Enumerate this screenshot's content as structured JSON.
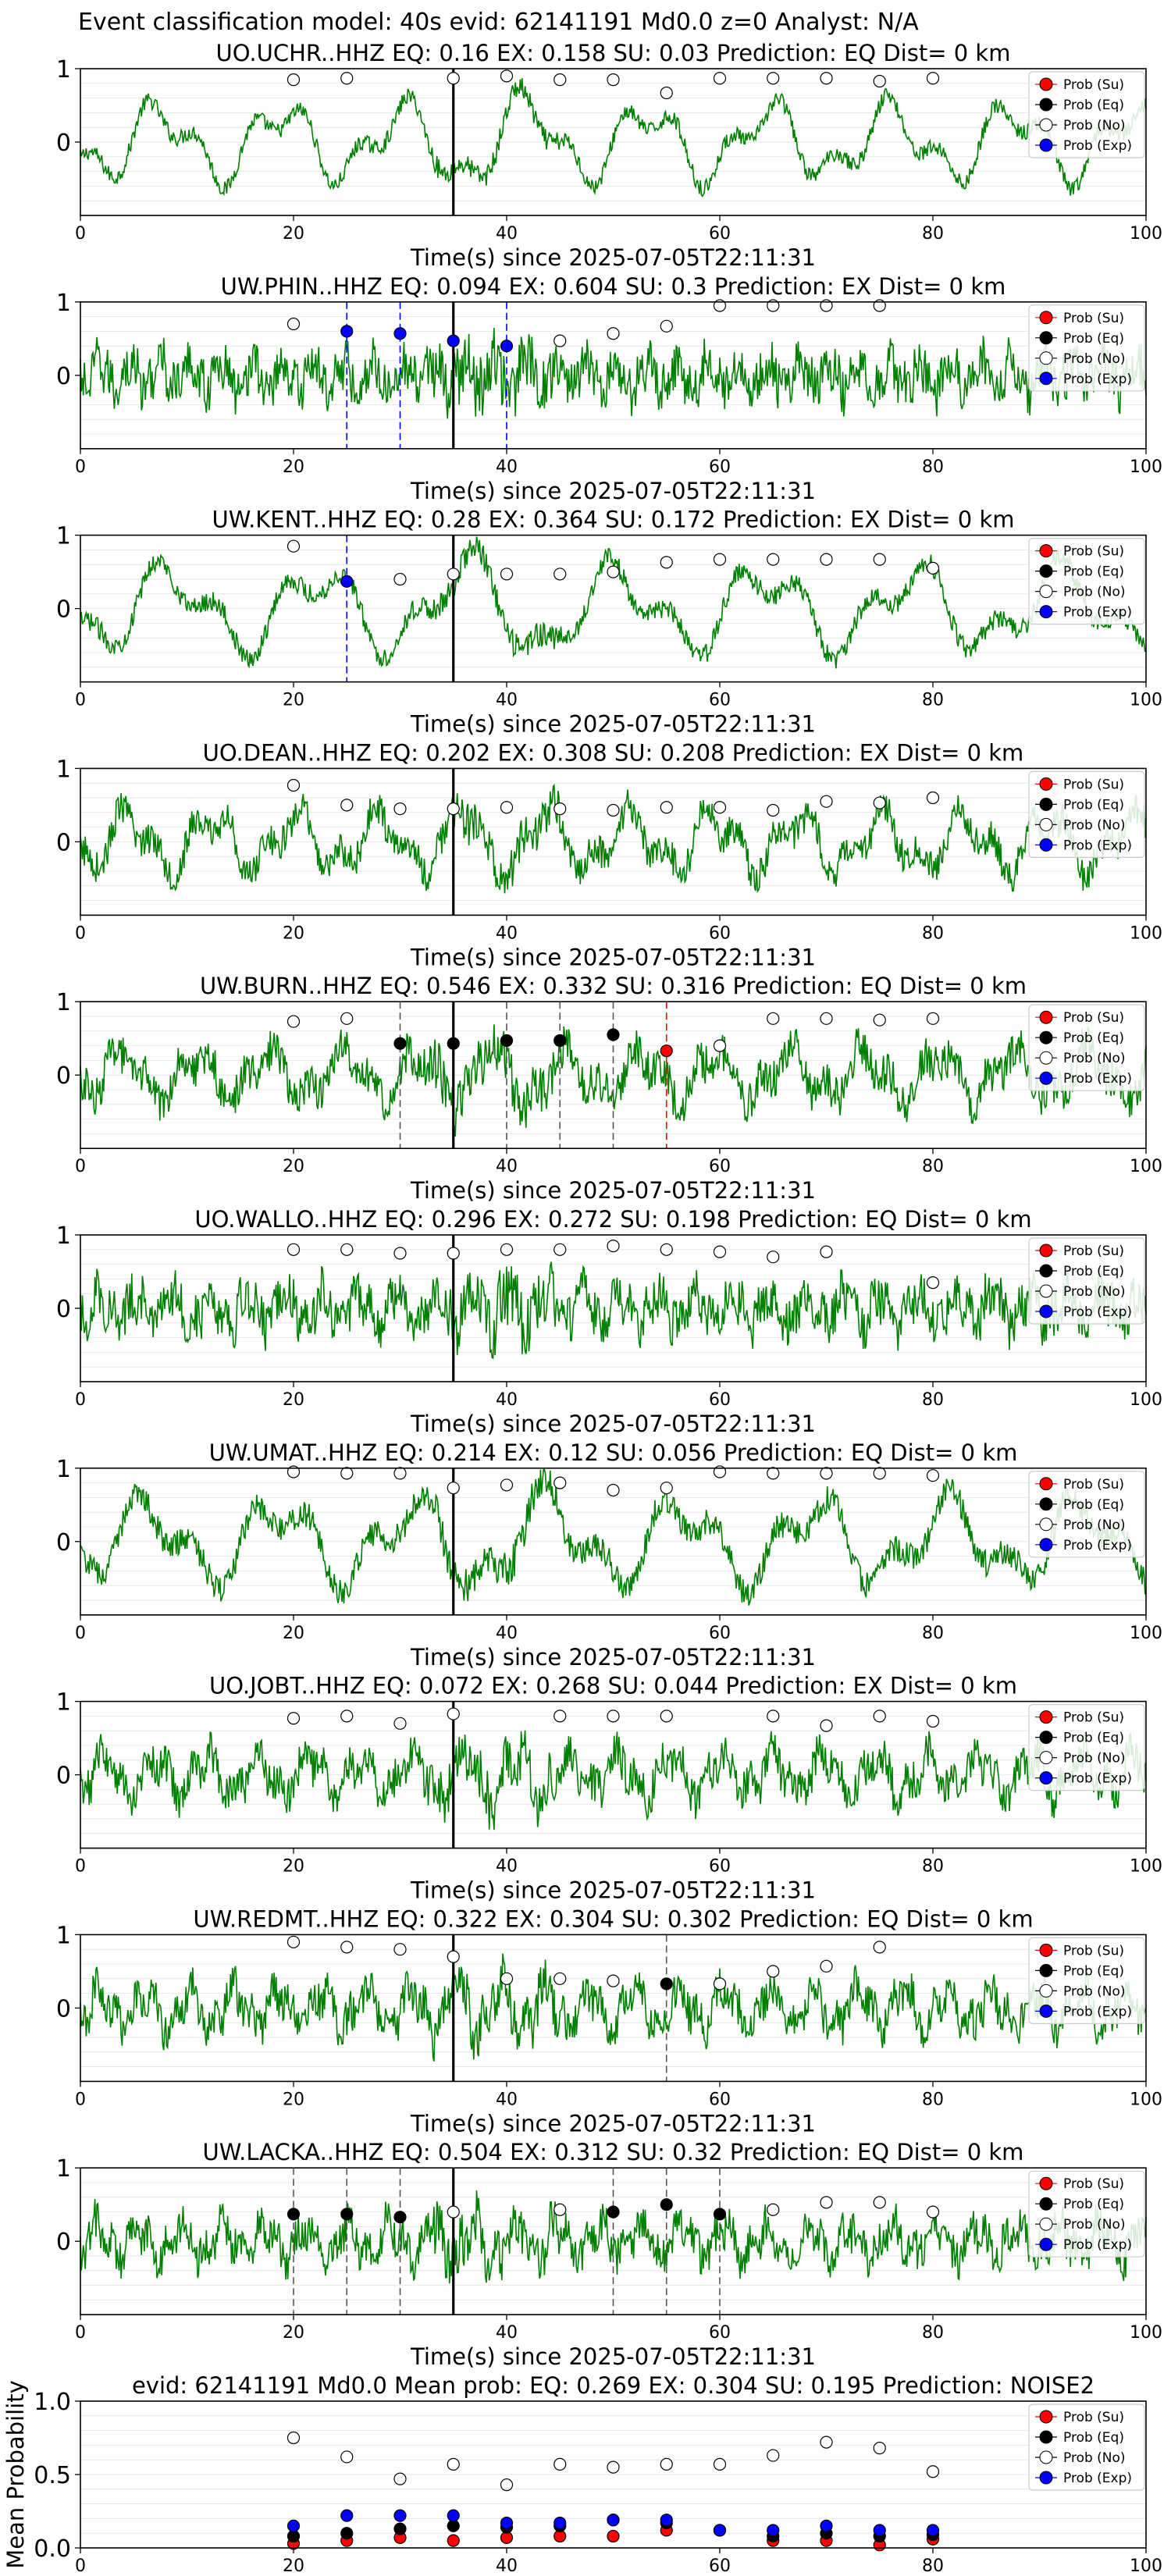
{
  "figure": {
    "suptitle": "Event classification model: 40s evid: 62141191 Md0.0 z=0 Analyst: N/A",
    "xlabel": "Time(s) since 2025-07-05T22:11:31",
    "xticks": [
      "0",
      "20",
      "40",
      "60",
      "80",
      "100"
    ],
    "yticks": [
      "1",
      "0"
    ],
    "legend": [
      "Prob (Su)",
      "Prob (Eq)",
      "Prob (No)",
      "Prob (Exp)"
    ],
    "colors": {
      "su": "#ff0000",
      "eq": "#000000",
      "no": "#ffffff",
      "exp": "#0000ff",
      "trace": "#008000",
      "grid": "#e6e6e6"
    }
  },
  "chart_data": [
    {
      "type": "line",
      "title": "UO.UCHR..HHZ   EQ: 0.16  EX: 0.158  SU: 0.03   Prediction: EQ    Dist= 0 km",
      "xlim": [
        0,
        100
      ],
      "ylim": [
        -1,
        1
      ],
      "event_line": 35,
      "no": [
        [
          20,
          0.85
        ],
        [
          25,
          0.87
        ],
        [
          35,
          0.87
        ],
        [
          40,
          0.9
        ],
        [
          45,
          0.85
        ],
        [
          50,
          0.85
        ],
        [
          55,
          0.67
        ],
        [
          60,
          0.87
        ],
        [
          65,
          0.87
        ],
        [
          70,
          0.87
        ],
        [
          75,
          0.83
        ],
        [
          80,
          0.87
        ]
      ],
      "eq": [],
      "su": [],
      "exp": [],
      "markers": []
    },
    {
      "type": "line",
      "title": "UW.PHIN..HHZ   EQ: 0.094  EX: 0.604  SU: 0.3   Prediction: EX    Dist= 0 km",
      "xlim": [
        0,
        100
      ],
      "ylim": [
        -1,
        1
      ],
      "event_line": 35,
      "no": [
        [
          20,
          0.7
        ],
        [
          45,
          0.47
        ],
        [
          50,
          0.57
        ],
        [
          55,
          0.67
        ],
        [
          60,
          0.95
        ],
        [
          65,
          0.95
        ],
        [
          70,
          0.95
        ],
        [
          75,
          0.95
        ]
      ],
      "eq": [],
      "su": [],
      "exp": [
        [
          25,
          0.6
        ],
        [
          30,
          0.57
        ],
        [
          35,
          0.47
        ],
        [
          40,
          0.4
        ]
      ],
      "markers": [
        {
          "x": 25,
          "c": "exp"
        },
        {
          "x": 30,
          "c": "exp"
        },
        {
          "x": 40,
          "c": "exp"
        }
      ]
    },
    {
      "type": "line",
      "title": "UW.KENT..HHZ   EQ: 0.28  EX: 0.364  SU: 0.172   Prediction: EX    Dist= 0 km",
      "xlim": [
        0,
        100
      ],
      "ylim": [
        -1,
        1
      ],
      "event_line": 35,
      "no": [
        [
          20,
          0.85
        ],
        [
          30,
          0.4
        ],
        [
          35,
          0.47
        ],
        [
          40,
          0.47
        ],
        [
          45,
          0.47
        ],
        [
          50,
          0.5
        ],
        [
          55,
          0.63
        ],
        [
          60,
          0.67
        ],
        [
          65,
          0.67
        ],
        [
          70,
          0.67
        ],
        [
          75,
          0.67
        ],
        [
          80,
          0.55
        ]
      ],
      "eq": [],
      "su": [],
      "exp": [
        [
          25,
          0.37
        ]
      ],
      "markers": [
        {
          "x": 25,
          "c": "exp"
        }
      ]
    },
    {
      "type": "line",
      "title": "UO.DEAN..HHZ   EQ: 0.202  EX: 0.308  SU: 0.208   Prediction: EX    Dist= 0 km",
      "xlim": [
        0,
        100
      ],
      "ylim": [
        -1,
        1
      ],
      "event_line": 35,
      "no": [
        [
          20,
          0.77
        ],
        [
          25,
          0.5
        ],
        [
          30,
          0.45
        ],
        [
          35,
          0.45
        ],
        [
          40,
          0.47
        ],
        [
          45,
          0.45
        ],
        [
          50,
          0.43
        ],
        [
          55,
          0.47
        ],
        [
          60,
          0.47
        ],
        [
          65,
          0.43
        ],
        [
          70,
          0.55
        ],
        [
          75,
          0.53
        ],
        [
          80,
          0.6
        ]
      ],
      "eq": [],
      "su": [],
      "exp": [],
      "markers": []
    },
    {
      "type": "line",
      "title": "UW.BURN..HHZ   EQ: 0.546  EX: 0.332  SU: 0.316   Prediction: EQ    Dist= 0 km",
      "xlim": [
        0,
        100
      ],
      "ylim": [
        -1,
        1
      ],
      "event_line": 35,
      "no": [
        [
          20,
          0.73
        ],
        [
          25,
          0.77
        ],
        [
          60,
          0.4
        ],
        [
          65,
          0.77
        ],
        [
          70,
          0.77
        ],
        [
          75,
          0.75
        ],
        [
          80,
          0.77
        ]
      ],
      "eq": [
        [
          30,
          0.43
        ],
        [
          35,
          0.43
        ],
        [
          40,
          0.47
        ],
        [
          45,
          0.47
        ],
        [
          50,
          0.55
        ]
      ],
      "su": [
        [
          55,
          0.33
        ]
      ],
      "exp": [],
      "markers": [
        {
          "x": 30,
          "c": "eq"
        },
        {
          "x": 40,
          "c": "eq"
        },
        {
          "x": 45,
          "c": "eq"
        },
        {
          "x": 50,
          "c": "eq"
        },
        {
          "x": 55,
          "c": "su"
        }
      ]
    },
    {
      "type": "line",
      "title": "UO.WALLO..HHZ   EQ: 0.296  EX: 0.272  SU: 0.198   Prediction: EQ    Dist= 0 km",
      "xlim": [
        0,
        100
      ],
      "ylim": [
        -1,
        1
      ],
      "event_line": 35,
      "no": [
        [
          20,
          0.8
        ],
        [
          25,
          0.8
        ],
        [
          30,
          0.75
        ],
        [
          35,
          0.75
        ],
        [
          40,
          0.8
        ],
        [
          45,
          0.8
        ],
        [
          50,
          0.85
        ],
        [
          55,
          0.8
        ],
        [
          60,
          0.77
        ],
        [
          65,
          0.7
        ],
        [
          70,
          0.77
        ],
        [
          80,
          0.35
        ]
      ],
      "eq": [],
      "su": [],
      "exp": [],
      "markers": []
    },
    {
      "type": "line",
      "title": "UW.UMAT..HHZ   EQ: 0.214  EX: 0.12  SU: 0.056   Prediction: EQ    Dist= 0 km",
      "xlim": [
        0,
        100
      ],
      "ylim": [
        -1,
        1
      ],
      "event_line": 35,
      "no": [
        [
          20,
          0.95
        ],
        [
          25,
          0.93
        ],
        [
          30,
          0.93
        ],
        [
          35,
          0.73
        ],
        [
          40,
          0.77
        ],
        [
          45,
          0.8
        ],
        [
          50,
          0.7
        ],
        [
          55,
          0.73
        ],
        [
          60,
          0.95
        ],
        [
          65,
          0.93
        ],
        [
          70,
          0.93
        ],
        [
          75,
          0.93
        ],
        [
          80,
          0.9
        ]
      ],
      "eq": [],
      "su": [],
      "exp": [],
      "markers": []
    },
    {
      "type": "line",
      "title": "UO.JOBT..HHZ   EQ: 0.072  EX: 0.268  SU: 0.044   Prediction: EX    Dist= 0 km",
      "xlim": [
        0,
        100
      ],
      "ylim": [
        -1,
        1
      ],
      "event_line": 35,
      "no": [
        [
          20,
          0.77
        ],
        [
          25,
          0.8
        ],
        [
          30,
          0.7
        ],
        [
          35,
          0.83
        ],
        [
          45,
          0.8
        ],
        [
          50,
          0.8
        ],
        [
          55,
          0.8
        ],
        [
          65,
          0.8
        ],
        [
          70,
          0.67
        ],
        [
          75,
          0.8
        ],
        [
          80,
          0.73
        ]
      ],
      "eq": [],
      "su": [],
      "exp": [],
      "markers": []
    },
    {
      "type": "line",
      "title": "UW.REDMT..HHZ   EQ: 0.322  EX: 0.304  SU: 0.302   Prediction: EQ    Dist= 0 km",
      "xlim": [
        0,
        100
      ],
      "ylim": [
        -1,
        1
      ],
      "event_line": 35,
      "no": [
        [
          20,
          0.9
        ],
        [
          25,
          0.83
        ],
        [
          30,
          0.8
        ],
        [
          35,
          0.7
        ],
        [
          40,
          0.4
        ],
        [
          45,
          0.4
        ],
        [
          50,
          0.37
        ],
        [
          60,
          0.33
        ],
        [
          65,
          0.5
        ],
        [
          70,
          0.57
        ],
        [
          75,
          0.83
        ]
      ],
      "eq": [
        [
          55,
          0.33
        ]
      ],
      "su": [],
      "exp": [],
      "markers": [
        {
          "x": 55,
          "c": "eq"
        }
      ]
    },
    {
      "type": "line",
      "title": "UW.LACKA..HHZ   EQ: 0.504  EX: 0.312  SU: 0.32   Prediction: EQ    Dist= 0 km",
      "xlim": [
        0,
        100
      ],
      "ylim": [
        -1,
        1
      ],
      "event_line": 35,
      "no": [
        [
          35,
          0.4
        ],
        [
          45,
          0.43
        ],
        [
          65,
          0.43
        ],
        [
          70,
          0.53
        ],
        [
          75,
          0.53
        ],
        [
          80,
          0.4
        ]
      ],
      "eq": [
        [
          20,
          0.37
        ],
        [
          25,
          0.37
        ],
        [
          30,
          0.33
        ],
        [
          50,
          0.4
        ],
        [
          55,
          0.5
        ],
        [
          60,
          0.37
        ]
      ],
      "su": [],
      "exp": [],
      "markers": [
        {
          "x": 20,
          "c": "eq"
        },
        {
          "x": 25,
          "c": "eq"
        },
        {
          "x": 30,
          "c": "eq"
        },
        {
          "x": 50,
          "c": "eq"
        },
        {
          "x": 55,
          "c": "eq"
        },
        {
          "x": 60,
          "c": "eq"
        }
      ]
    },
    {
      "type": "scatter",
      "title": "evid: 62141191  Md0.0   Mean prob:   EQ: 0.269  EX: 0.304  SU: 0.195   Prediction: NOISE2",
      "ylabel": "Mean Probability",
      "xlim": [
        0,
        100
      ],
      "ylim": [
        0,
        1
      ],
      "yticks": [
        "1.0",
        "0.5",
        "0.0"
      ],
      "x": [
        20,
        25,
        30,
        35,
        40,
        45,
        50,
        55,
        60,
        65,
        70,
        75,
        80
      ],
      "series": [
        {
          "name": "Prob (Su)",
          "key": "su",
          "values": [
            0.03,
            0.05,
            0.07,
            0.05,
            0.07,
            0.08,
            0.08,
            0.12,
            0.12,
            0.05,
            0.05,
            0.02,
            0.06
          ]
        },
        {
          "name": "Prob (Eq)",
          "key": "eq",
          "values": [
            0.08,
            0.1,
            0.13,
            0.15,
            0.14,
            0.15,
            0.19,
            0.17,
            0.12,
            0.08,
            0.1,
            0.08,
            0.09
          ]
        },
        {
          "name": "Prob (No)",
          "key": "no",
          "values": [
            0.75,
            0.62,
            0.47,
            0.57,
            0.43,
            0.57,
            0.55,
            0.57,
            0.57,
            0.63,
            0.72,
            0.68,
            0.52
          ]
        },
        {
          "name": "Prob (Exp)",
          "key": "exp",
          "values": [
            0.15,
            0.22,
            0.22,
            0.22,
            0.17,
            0.17,
            0.19,
            0.19,
            0.12,
            0.12,
            0.15,
            0.12,
            0.12
          ]
        }
      ]
    }
  ]
}
